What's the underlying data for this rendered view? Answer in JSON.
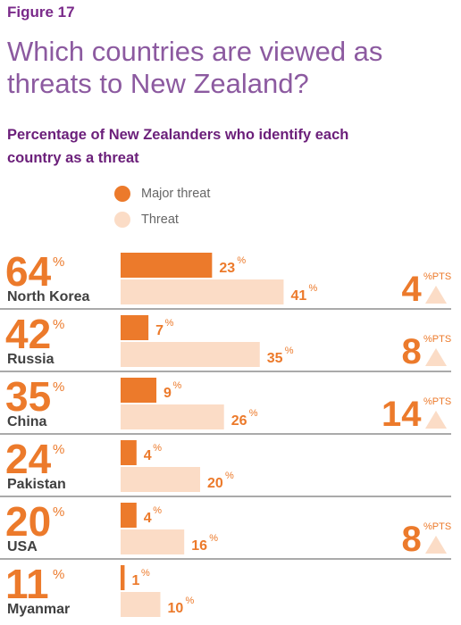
{
  "figure_label": "Figure 17",
  "headline": "Which countries are viewed as threats to New Zealand?",
  "subtitle": "Percentage of New Zealanders who identify each country as a threat",
  "legend": [
    {
      "label": "Major threat",
      "color": "#ec7a2b"
    },
    {
      "label": "Threat",
      "color": "#fbdcc6"
    }
  ],
  "colors": {
    "major": "#ec7a2b",
    "threat": "#fbdcc6",
    "divider": "#555555",
    "purple": "#7a2a8a"
  },
  "pct_symbol": "%",
  "pts_symbol": "%PTS",
  "chart_data": {
    "type": "bar",
    "orientation": "horizontal",
    "categories": [
      "North Korea",
      "Russia",
      "China",
      "Pakistan",
      "USA",
      "Myanmar"
    ],
    "totals": [
      64,
      42,
      35,
      24,
      20,
      11
    ],
    "series": [
      {
        "name": "Major threat",
        "values": [
          23,
          7,
          9,
          4,
          4,
          1
        ]
      },
      {
        "name": "Threat",
        "values": [
          41,
          35,
          26,
          20,
          16,
          10
        ]
      }
    ],
    "changes": [
      4,
      8,
      14,
      null,
      8,
      null
    ],
    "change_direction": [
      "up",
      "up",
      "up",
      null,
      "up",
      null
    ],
    "xlim": [
      0,
      41
    ],
    "grid": false
  }
}
